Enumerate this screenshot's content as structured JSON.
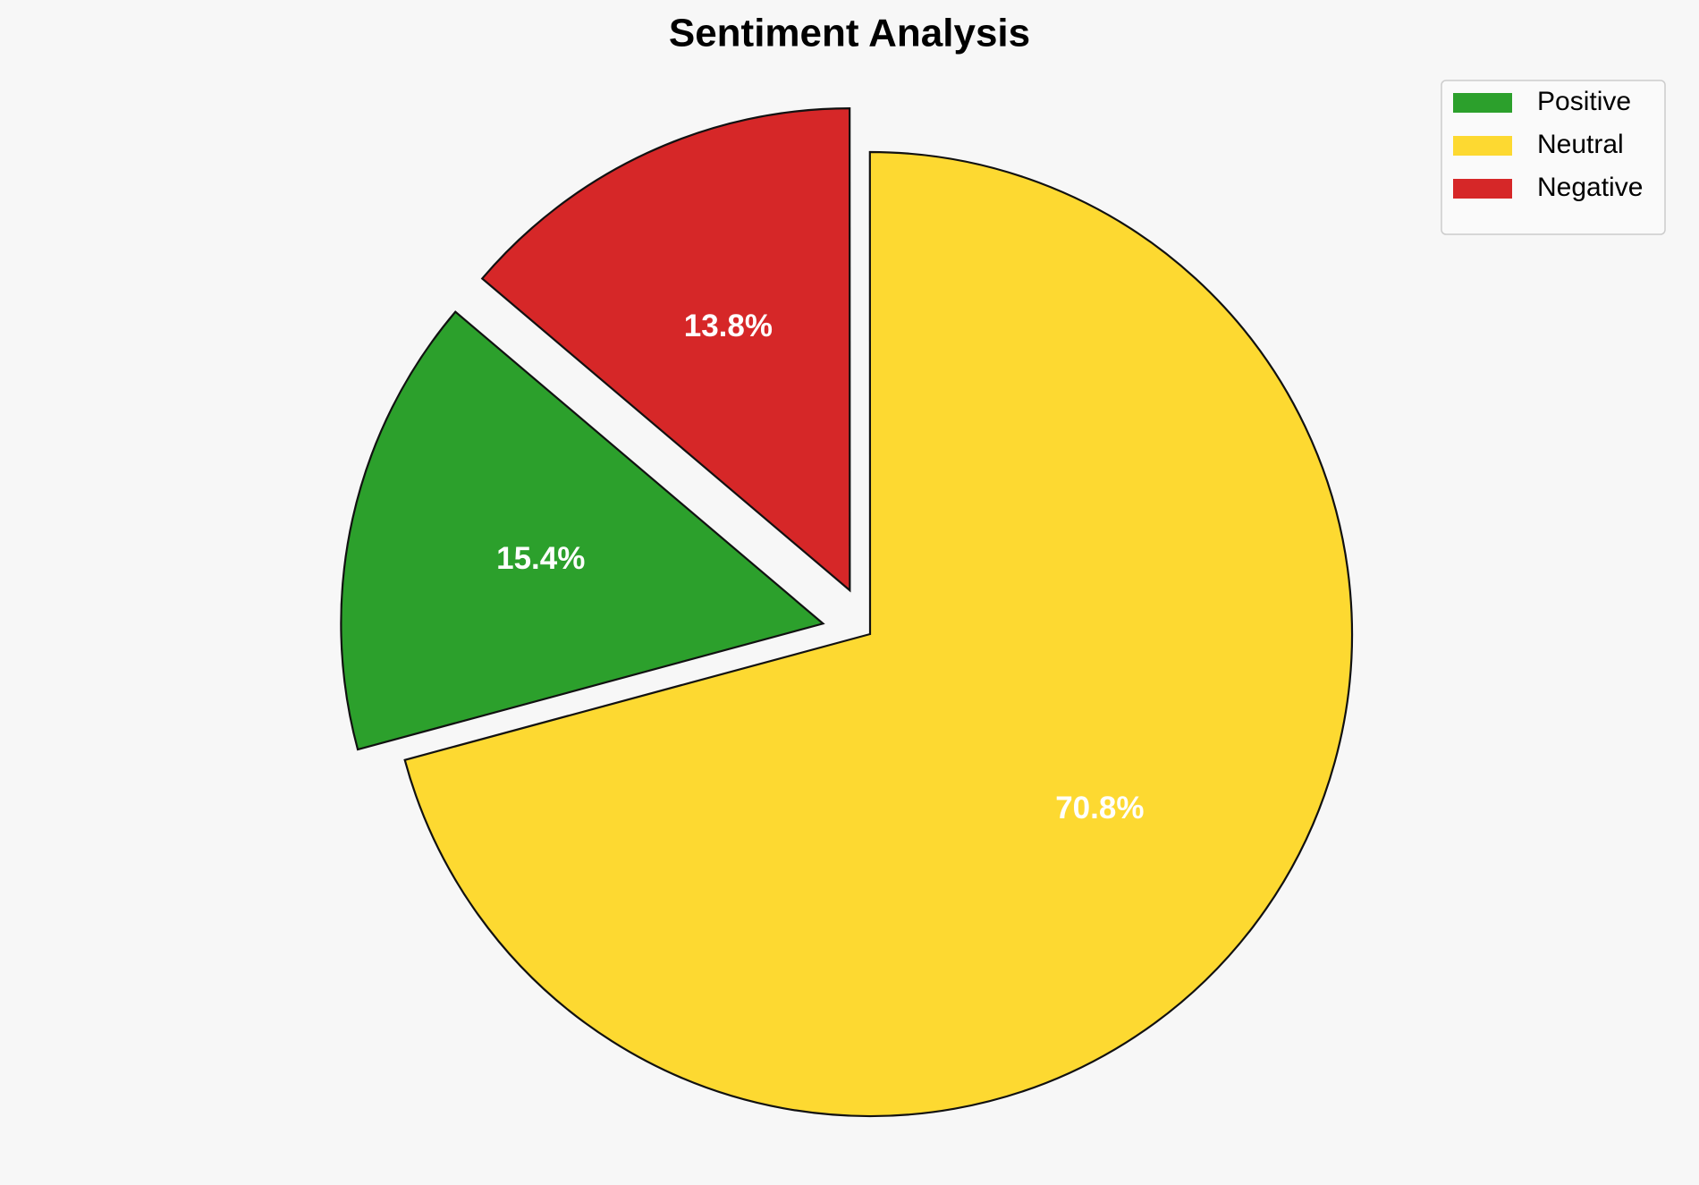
{
  "chart_data": {
    "type": "pie",
    "title": "Sentiment Analysis",
    "categories": [
      "Positive",
      "Neutral",
      "Negative"
    ],
    "values": [
      15.4,
      70.8,
      13.8
    ],
    "value_labels": [
      "15.4%",
      "70.8%",
      "13.8%"
    ],
    "colors": [
      "#2ca02c",
      "#fdd931",
      "#d62728"
    ],
    "legend": "upper right"
  }
}
